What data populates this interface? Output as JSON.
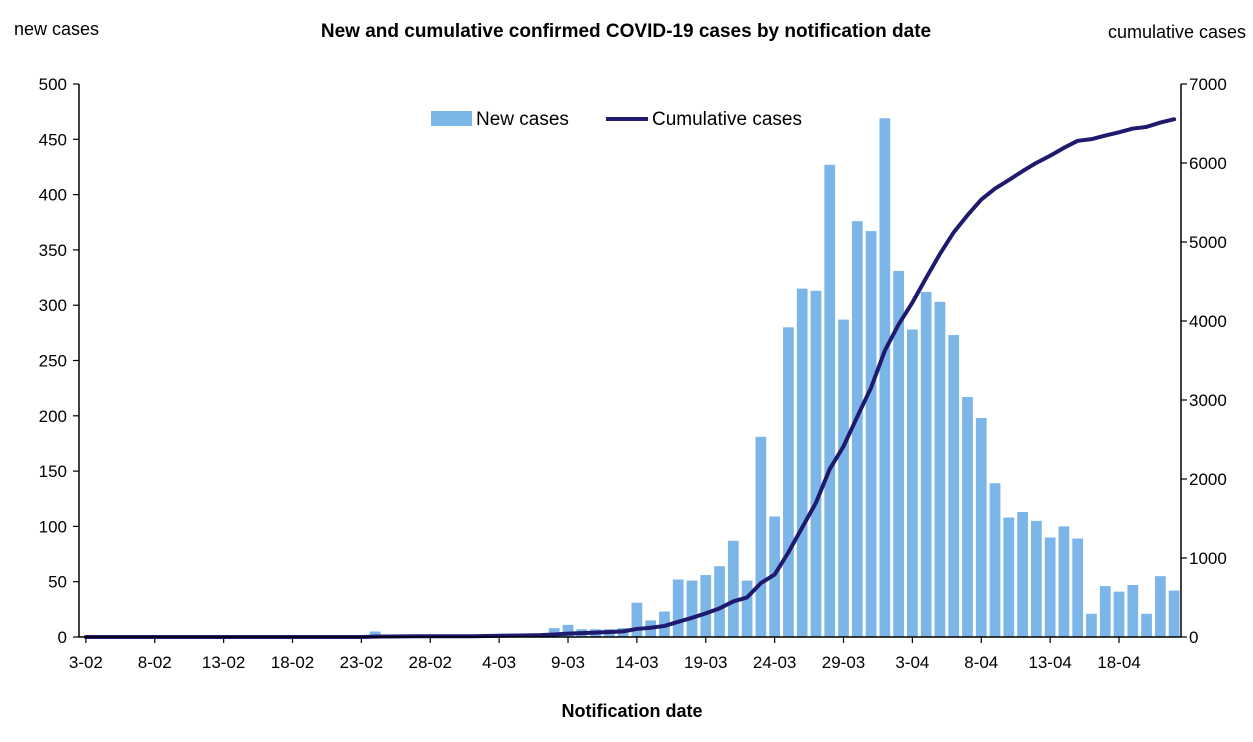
{
  "chart_data": {
    "type": "bar+line",
    "title": "New and cumulative confirmed COVID-19 cases by notification date",
    "y_left_label": "new cases",
    "y_right_label": "cumulative cases",
    "xlabel": "Notification date",
    "y_left_lim": [
      0,
      500
    ],
    "y_left_ticks": [
      "0",
      "50",
      "100",
      "150",
      "200",
      "250",
      "300",
      "350",
      "400",
      "450",
      "500"
    ],
    "y_right_lim": [
      0,
      7000
    ],
    "y_right_ticks": [
      "0",
      "1000",
      "2000",
      "3000",
      "4000",
      "5000",
      "6000",
      "7000"
    ],
    "x_tick_labels": [
      "3-02",
      "8-02",
      "13-02",
      "18-02",
      "23-02",
      "28-02",
      "4-03",
      "9-03",
      "14-03",
      "19-03",
      "24-03",
      "29-03",
      "3-04",
      "8-04",
      "13-04",
      "18-04"
    ],
    "legend_position": "top-center",
    "grid": false,
    "colors": {
      "bar": "#7CB5E8",
      "line": "#1F1A6E",
      "axis": "#000000"
    },
    "series": [
      {
        "name": "New cases",
        "type": "bar",
        "values": [
          0,
          0,
          0,
          0,
          0,
          0,
          0,
          0,
          0,
          0,
          0,
          0,
          0,
          0,
          0,
          0,
          0,
          0,
          0,
          0,
          0,
          5,
          2,
          1,
          1,
          0,
          1,
          0,
          0,
          2,
          3,
          3,
          2,
          3,
          8,
          11,
          7,
          7,
          7,
          8,
          31,
          15,
          23,
          52,
          51,
          56,
          64,
          87,
          51,
          181,
          109,
          280,
          315,
          313,
          427,
          287,
          376,
          367,
          469,
          331,
          278,
          312,
          303,
          273,
          217,
          198,
          139,
          108,
          113,
          105,
          90,
          100,
          89,
          21,
          46,
          41,
          47,
          21,
          55,
          42
        ]
      },
      {
        "name": "Cumulative cases",
        "type": "line",
        "values": [
          0,
          0,
          0,
          0,
          0,
          0,
          0,
          0,
          0,
          0,
          0,
          0,
          0,
          0,
          0,
          0,
          0,
          0,
          0,
          0,
          0,
          5,
          7,
          8,
          9,
          9,
          10,
          10,
          10,
          12,
          15,
          18,
          20,
          23,
          31,
          42,
          49,
          56,
          63,
          71,
          102,
          117,
          140,
          192,
          243,
          299,
          363,
          450,
          501,
          682,
          791,
          1071,
          1386,
          1699,
          2126,
          2413,
          2789,
          3156,
          3625,
          3956,
          4234,
          4546,
          4849,
          5122,
          5339,
          5537,
          5676,
          5784,
          5897,
          6002,
          6092,
          6192,
          6281,
          6302,
          6348,
          6389,
          6436,
          6457,
          6512,
          6554
        ]
      }
    ]
  }
}
